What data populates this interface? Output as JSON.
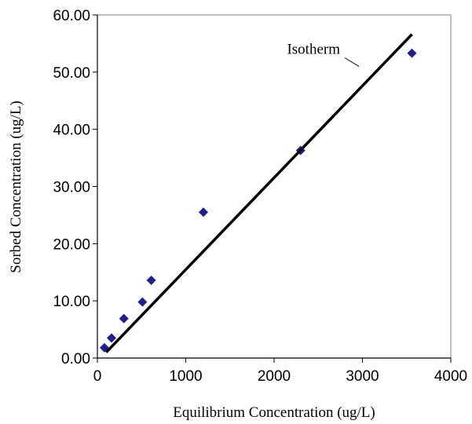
{
  "chart_data": {
    "type": "scatter",
    "title": "",
    "xlabel": "Equilibrium Concentration (ug/L)",
    "ylabel": "Sorbed Concentration (ug/L)",
    "xlim": [
      0,
      4000
    ],
    "ylim": [
      0,
      60
    ],
    "x_ticks": [
      "0",
      "1000",
      "2000",
      "3000",
      "4000"
    ],
    "y_ticks": [
      "0.00",
      "10.00",
      "20.00",
      "30.00",
      "40.00",
      "50.00",
      "60.00"
    ],
    "grid": false,
    "series": [
      {
        "type": "scatter",
        "marker": "diamond",
        "color": "#1f1f8f",
        "x": [
          80,
          160,
          300,
          510,
          610,
          1200,
          2300,
          3560
        ],
        "y": [
          1.8,
          3.5,
          6.9,
          9.8,
          13.6,
          25.5,
          36.3,
          53.3
        ]
      },
      {
        "type": "line",
        "color": "#000000",
        "x": [
          100,
          3560
        ],
        "y": [
          1.0,
          56.6
        ]
      }
    ],
    "annotations": [
      {
        "text": "Isotherm",
        "leader_from": [
          2800,
          52.5
        ],
        "leader_to": [
          2960,
          51.0
        ]
      }
    ]
  }
}
